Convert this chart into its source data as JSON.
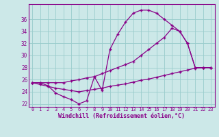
{
  "bg_color": "#cce8e8",
  "line_color": "#880088",
  "grid_color": "#99cccc",
  "xlabel": "Windchill (Refroidissement éolien,°C)",
  "ylim": [
    21.5,
    38.5
  ],
  "xlim": [
    -0.5,
    23.5
  ],
  "yticks": [
    22,
    24,
    26,
    28,
    30,
    32,
    34,
    36
  ],
  "xticks": [
    0,
    1,
    2,
    3,
    4,
    5,
    6,
    7,
    8,
    9,
    10,
    11,
    12,
    13,
    14,
    15,
    16,
    17,
    18,
    19,
    20,
    21,
    22,
    23
  ],
  "curve1_x": [
    0,
    1,
    2,
    3,
    4,
    5,
    6,
    7,
    8,
    9,
    10,
    11,
    12,
    13,
    14,
    15,
    16,
    17,
    18,
    19,
    20,
    21,
    22,
    23
  ],
  "curve1_y": [
    25.5,
    25.5,
    25.0,
    23.8,
    23.2,
    22.7,
    22.0,
    22.5,
    26.5,
    24.2,
    31.0,
    33.5,
    35.5,
    37.0,
    37.5,
    37.5,
    37.0,
    36.0,
    35.0,
    34.0,
    32.0,
    28.0,
    28.0,
    28.0
  ],
  "curve2_x": [
    0,
    1,
    2,
    3,
    4,
    5,
    6,
    7,
    8,
    9,
    10,
    11,
    12,
    13,
    14,
    15,
    16,
    17,
    18,
    19,
    20,
    21,
    22,
    23
  ],
  "curve2_y": [
    25.5,
    25.5,
    25.5,
    25.5,
    25.5,
    25.8,
    26.0,
    26.3,
    26.5,
    27.0,
    27.5,
    28.0,
    28.5,
    29.0,
    30.0,
    31.0,
    32.0,
    33.0,
    34.5,
    34.0,
    32.0,
    28.0,
    28.0,
    28.0
  ],
  "curve3_x": [
    0,
    1,
    2,
    3,
    4,
    5,
    6,
    7,
    8,
    9,
    10,
    11,
    12,
    13,
    14,
    15,
    16,
    17,
    18,
    19,
    20,
    21,
    22,
    23
  ],
  "curve3_y": [
    25.5,
    25.2,
    24.9,
    24.6,
    24.4,
    24.2,
    24.0,
    24.2,
    24.4,
    24.6,
    24.9,
    25.1,
    25.3,
    25.6,
    25.9,
    26.1,
    26.4,
    26.7,
    27.0,
    27.3,
    27.6,
    27.9,
    28.0,
    28.0
  ]
}
